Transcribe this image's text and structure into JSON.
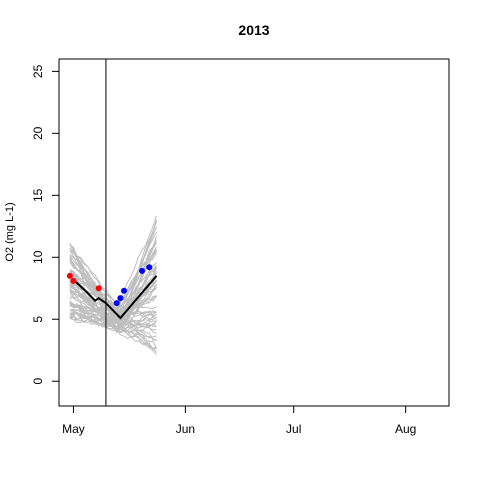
{
  "chart_data": {
    "type": "line",
    "title": "2013",
    "xlabel": "",
    "ylabel": "O2 (mg L-1)",
    "xlim": [
      "2013-04-27",
      "2013-08-13"
    ],
    "ylim": [
      -2,
      26
    ],
    "x_ticks": [
      {
        "date": "2013-05-01",
        "label": "May"
      },
      {
        "date": "2013-06-01",
        "label": "Jun"
      },
      {
        "date": "2013-07-01",
        "label": "Jul"
      },
      {
        "date": "2013-08-01",
        "label": "Aug"
      }
    ],
    "y_ticks": [
      0,
      5,
      10,
      15,
      20,
      25
    ],
    "grid": false,
    "vertical_line": {
      "date": "2013-05-10",
      "color": "#000000"
    },
    "ensemble": {
      "color": "#bebebe",
      "count": 60,
      "start_date": "2013-04-30",
      "end_date": "2013-05-24",
      "end_range": [
        2.3,
        13.5
      ],
      "min_range": [
        3.0,
        5.5
      ]
    },
    "series": [
      {
        "name": "",
        "type": "line",
        "color": "#000000",
        "points": [
          {
            "x": "2013-05-01",
            "y": 8.2
          },
          {
            "x": "2013-05-05",
            "y": 7.1
          },
          {
            "x": "2013-05-07",
            "y": 6.5
          },
          {
            "x": "2013-05-08",
            "y": 6.7
          },
          {
            "x": "2013-05-10",
            "y": 6.3
          },
          {
            "x": "2013-05-14",
            "y": 5.1
          },
          {
            "x": "2013-05-24",
            "y": 8.5
          }
        ]
      },
      {
        "name": "",
        "type": "scatter",
        "color": "#ff0000",
        "points": [
          {
            "x": "2013-04-30",
            "y": 8.5
          },
          {
            "x": "2013-05-01",
            "y": 8.1
          },
          {
            "x": "2013-05-08",
            "y": 7.5
          }
        ]
      },
      {
        "name": "",
        "type": "scatter",
        "color": "#0000ff",
        "points": [
          {
            "x": "2013-05-13",
            "y": 6.3
          },
          {
            "x": "2013-05-14",
            "y": 6.7
          },
          {
            "x": "2013-05-15",
            "y": 7.3
          },
          {
            "x": "2013-05-20",
            "y": 8.9
          },
          {
            "x": "2013-05-22",
            "y": 9.2
          }
        ]
      }
    ]
  }
}
